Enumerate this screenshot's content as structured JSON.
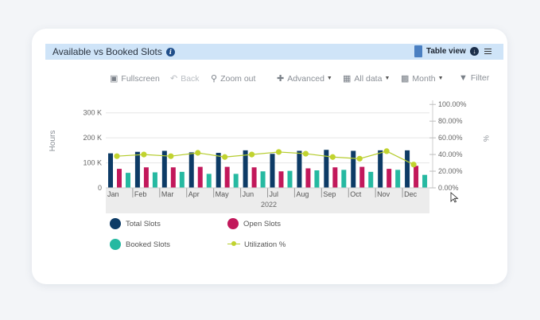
{
  "header": {
    "title": "Available vs Booked Slots",
    "table_view_label": "Table view"
  },
  "toolbar": {
    "fullscreen": "Fullscreen",
    "back": "Back",
    "zoom_out": "Zoom out",
    "advanced": "Advanced",
    "all_data": "All data",
    "month": "Month",
    "filter": "Filter"
  },
  "icons": {
    "info": "info-icon",
    "table_view": "table-view-icon",
    "download": "download-icon",
    "menu": "hamburger-menu-icon",
    "fullscreen": "fullscreen-icon",
    "back": "back-arrow-icon",
    "zoom_out": "magnifier-icon",
    "advanced": "advanced-icon",
    "all_data": "calendar-icon",
    "month": "bar-chart-icon",
    "filter": "funnel-icon"
  },
  "colors": {
    "total": "#0d3b66",
    "open": "#c2185b",
    "booked": "#26b9a1",
    "utilization": "#c1d32f",
    "title_bar": "#cfe4f8"
  },
  "chart_data": {
    "type": "bar",
    "categories": [
      "Jan",
      "Feb",
      "Mar",
      "Apr",
      "May",
      "Jun",
      "Jul",
      "Aug",
      "Sep",
      "Oct",
      "Nov",
      "Dec"
    ],
    "year_label": "2022",
    "ylabel": "Hours",
    "y2label": "%",
    "ylim": [
      0,
      350000
    ],
    "y_ticks": [
      0,
      100000,
      200000,
      300000
    ],
    "y_tick_labels": [
      "0",
      "100 K",
      "200 K",
      "300 K"
    ],
    "y2lim": [
      0,
      105
    ],
    "y2_ticks": [
      0,
      20,
      40,
      60,
      80,
      100
    ],
    "y2_tick_labels": [
      "0.00%",
      "20.00%",
      "40.00%",
      "60.00%",
      "80.00%",
      "100.00%"
    ],
    "grid": true,
    "legend_position": "bottom",
    "series": [
      {
        "name": "Total Slots",
        "kind": "bar",
        "axis": "left",
        "values": [
          138000,
          144000,
          148000,
          142000,
          140000,
          150000,
          136000,
          148000,
          152000,
          148000,
          150000,
          150000
        ]
      },
      {
        "name": "Open Slots",
        "kind": "bar",
        "axis": "left",
        "values": [
          76000,
          82000,
          82000,
          84000,
          84000,
          82000,
          66000,
          78000,
          82000,
          84000,
          76000,
          88000
        ]
      },
      {
        "name": "Booked Slots",
        "kind": "bar",
        "axis": "left",
        "values": [
          60000,
          62000,
          64000,
          56000,
          56000,
          66000,
          68000,
          70000,
          72000,
          64000,
          72000,
          52000
        ]
      },
      {
        "name": "Utilization %",
        "kind": "line",
        "axis": "right",
        "values": [
          38,
          40,
          38,
          42,
          37,
          40,
          43,
          41,
          37,
          35,
          44,
          28
        ]
      }
    ]
  }
}
